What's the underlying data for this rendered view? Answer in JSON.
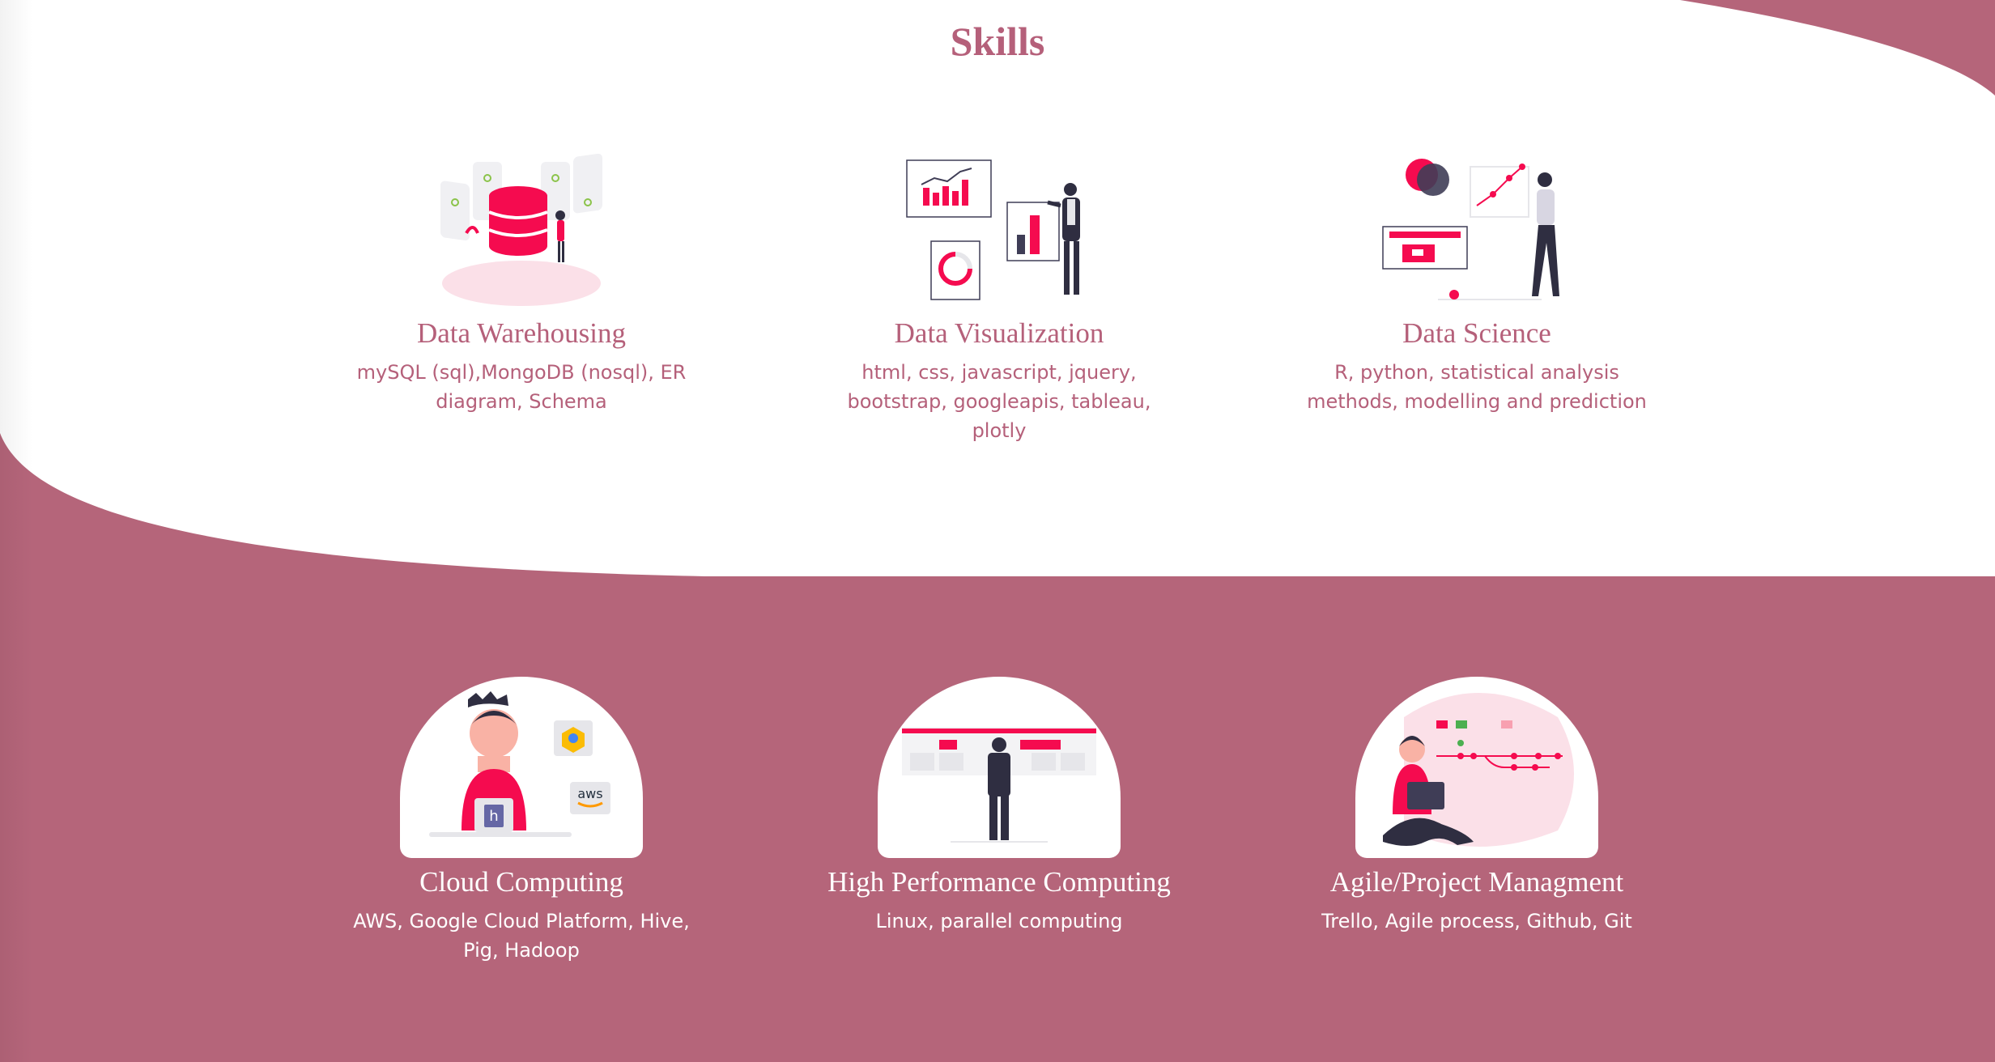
{
  "section": {
    "title": "Skills"
  },
  "colors": {
    "accent": "#b5657a",
    "text": "#b5607a",
    "illustration": "#f50b4f",
    "background": "#ffffff"
  },
  "cards_top": [
    {
      "title": "Data Warehousing",
      "desc": "mySQL (sql),MongoDB (nosql), ER diagram, Schema",
      "icon": "database-icon"
    },
    {
      "title": "Data Visualization",
      "desc": "html, css, javascript, jquery, bootstrap, googleapis, tableau, plotly",
      "icon": "charts-presentation-icon"
    },
    {
      "title": "Data Science",
      "desc": "R, python, statistical analysis methods, modelling and prediction",
      "icon": "data-analysis-icon"
    }
  ],
  "cards_bottom": [
    {
      "title": "Cloud Computing",
      "desc": "AWS, Google Cloud Platform, Hive, Pig, Hadoop",
      "icon": "cloud-developer-icon",
      "badges": [
        "aws",
        "heroku"
      ]
    },
    {
      "title": "High Performance Computing",
      "desc": "Linux, parallel computing",
      "icon": "dashboard-wall-icon"
    },
    {
      "title": "Agile/Project Managment",
      "desc": "Trello, Agile process, Github, Git",
      "icon": "git-workflow-icon"
    }
  ]
}
